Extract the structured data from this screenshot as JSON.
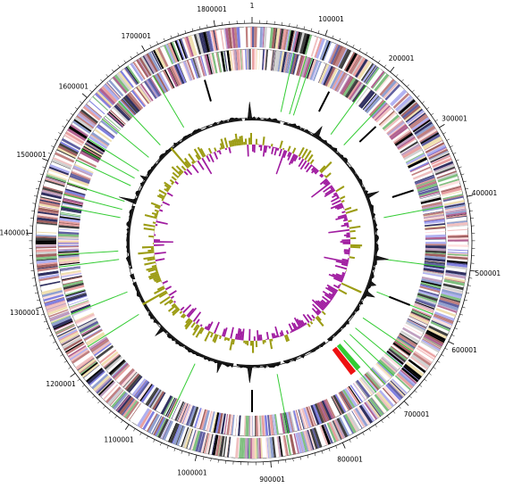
{
  "genome": {
    "total_length": 1850000,
    "tick_interval": 100000,
    "tick_labels": [
      "1",
      "100001",
      "200001",
      "300001",
      "400001",
      "500001",
      "600001",
      "700001",
      "800001",
      "900001",
      "1000001",
      "1100001",
      "1200001",
      "1300001",
      "1400001",
      "1500001",
      "1600001",
      "1700001",
      "1800001"
    ]
  },
  "tracks": {
    "cds_colors": [
      "#000000",
      "#e8a0a0",
      "#a06060",
      "#8080e0",
      "#b0b0f0",
      "#ffffff",
      "#c0a0c0",
      "#80c080",
      "#d0d0d0",
      "#404040",
      "#f0c0c0",
      "#6060a0",
      "#c08080",
      "#f0e0b0",
      "#90a0d0",
      "#b06090",
      "#ffe0e0",
      "#303060"
    ],
    "rna_color": "#33cc33",
    "highlight_color": "#ee1111",
    "gc_content_color": "#000000",
    "gc_skew_positive": "#9c9c14",
    "gc_skew_negative": "#a01ca0"
  }
}
